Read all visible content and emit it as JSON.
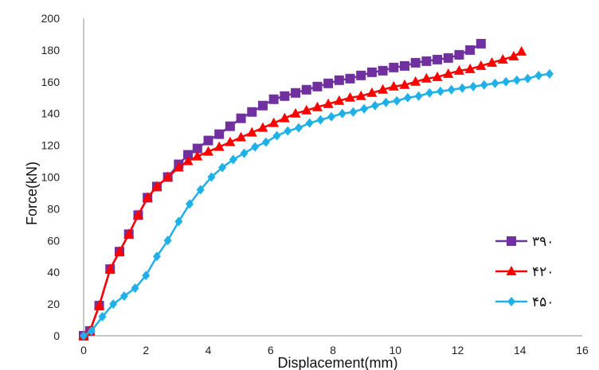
{
  "chart_data": {
    "type": "line",
    "title": "",
    "xlabel": "Displacement(mm)",
    "ylabel": "Force(kN)",
    "xlim": [
      0,
      16
    ],
    "ylim": [
      0,
      200
    ],
    "xticks": [
      "0",
      "2",
      "4",
      "6",
      "8",
      "10",
      "12",
      "14",
      "16"
    ],
    "yticks": [
      "0",
      "20",
      "40",
      "60",
      "80",
      "100",
      "120",
      "140",
      "160",
      "180",
      "200"
    ],
    "grid": false,
    "legend_position": "right",
    "series": [
      {
        "name": "۳۹۰",
        "color": "#7030a0",
        "marker": "square",
        "x": [
          0,
          0.2,
          0.5,
          0.85,
          1.15,
          1.45,
          1.75,
          2.05,
          2.35,
          2.7,
          3.05,
          3.35,
          3.65,
          4.0,
          4.35,
          4.7,
          5.05,
          5.4,
          5.75,
          6.1,
          6.45,
          6.8,
          7.15,
          7.5,
          7.85,
          8.2,
          8.55,
          8.9,
          9.25,
          9.6,
          9.95,
          10.3,
          10.65,
          11.0,
          11.35,
          11.7,
          12.05,
          12.4,
          12.75
        ],
        "y": [
          0,
          3,
          19,
          42,
          53,
          64,
          76,
          87,
          94,
          100,
          108,
          114,
          118,
          123,
          127,
          132,
          137,
          141,
          145,
          149,
          151,
          153,
          155,
          157,
          159,
          161,
          162,
          164,
          166,
          167,
          169,
          170,
          172,
          173,
          174,
          175,
          177,
          180,
          184
        ]
      },
      {
        "name": "۴۲۰",
        "color": "#ff0000",
        "marker": "triangle",
        "x": [
          0,
          0.2,
          0.5,
          0.85,
          1.15,
          1.45,
          1.75,
          2.05,
          2.35,
          2.7,
          3.05,
          3.35,
          3.65,
          4.0,
          4.35,
          4.7,
          5.05,
          5.4,
          5.75,
          6.1,
          6.45,
          6.8,
          7.15,
          7.5,
          7.85,
          8.2,
          8.55,
          8.9,
          9.25,
          9.6,
          9.95,
          10.3,
          10.65,
          11.0,
          11.35,
          11.7,
          12.05,
          12.4,
          12.75,
          13.1,
          13.45,
          13.8,
          14.05
        ],
        "y": [
          0,
          3,
          19,
          42,
          53,
          64,
          76,
          87,
          94,
          100,
          106,
          110,
          113,
          116,
          119,
          122,
          125,
          128,
          131,
          134,
          137,
          140,
          142,
          144,
          146,
          148,
          150,
          151,
          153,
          155,
          157,
          158,
          160,
          162,
          163,
          165,
          167,
          168,
          170,
          172,
          174,
          176,
          179
        ]
      },
      {
        "name": "۴۵۰",
        "color": "#1fb0e8",
        "marker": "diamond",
        "x": [
          0,
          0.25,
          0.6,
          0.95,
          1.3,
          1.65,
          2.0,
          2.35,
          2.7,
          3.05,
          3.4,
          3.75,
          4.1,
          4.45,
          4.8,
          5.15,
          5.5,
          5.85,
          6.2,
          6.55,
          6.9,
          7.25,
          7.6,
          7.95,
          8.3,
          8.65,
          9.0,
          9.35,
          9.7,
          10.05,
          10.4,
          10.75,
          11.1,
          11.45,
          11.8,
          12.15,
          12.5,
          12.85,
          13.2,
          13.55,
          13.9,
          14.25,
          14.6,
          14.95
        ],
        "y": [
          0,
          3,
          12,
          20,
          25,
          30,
          38,
          50,
          60,
          72,
          83,
          92,
          100,
          106,
          111,
          115,
          119,
          122,
          126,
          129,
          131,
          134,
          136,
          138,
          140,
          141,
          143,
          145,
          147,
          148,
          150,
          151,
          153,
          154,
          155,
          156,
          157,
          158,
          159,
          160,
          161,
          162,
          164,
          165
        ]
      }
    ]
  }
}
